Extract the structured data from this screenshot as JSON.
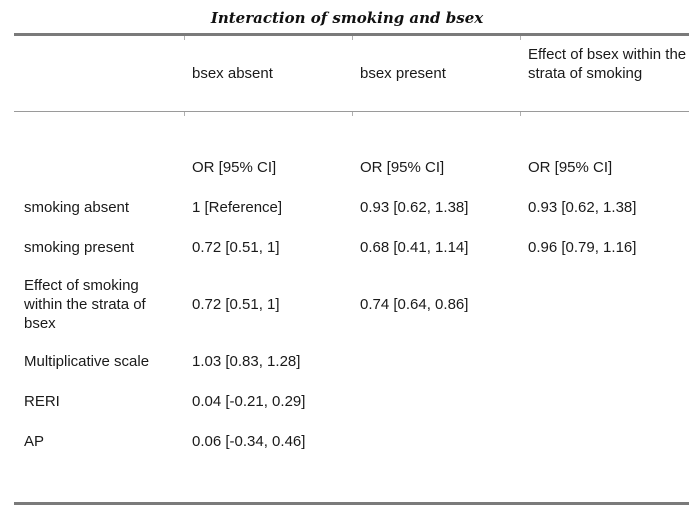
{
  "title": "Interaction of smoking and bsex",
  "columns": [
    "bsex absent",
    "bsex present",
    "Effect of bsex within the strata of smoking"
  ],
  "stat_labels": [
    "OR [95% CI]",
    "OR [95% CI]",
    "OR [95% CI]"
  ],
  "rows": [
    {
      "label": "smoking absent",
      "values": [
        "1 [Reference]",
        "0.93 [0.62, 1.38]",
        "0.93 [0.62, 1.38]"
      ]
    },
    {
      "label": "smoking present",
      "values": [
        "0.72 [0.51, 1]",
        "0.68 [0.41, 1.14]",
        "0.96 [0.79, 1.16]"
      ]
    },
    {
      "label": "Effect of smoking within the strata of bsex",
      "values": [
        "0.72 [0.51, 1]",
        "0.74 [0.64, 0.86]",
        ""
      ]
    },
    {
      "label": "Multiplicative scale",
      "values": [
        "1.03 [0.83, 1.28]",
        "",
        ""
      ]
    },
    {
      "label": "RERI",
      "values": [
        "0.04 [-0.21, 0.29]",
        "",
        ""
      ]
    },
    {
      "label": "AP",
      "values": [
        "0.06 [-0.34, 0.46]",
        "",
        ""
      ]
    }
  ]
}
